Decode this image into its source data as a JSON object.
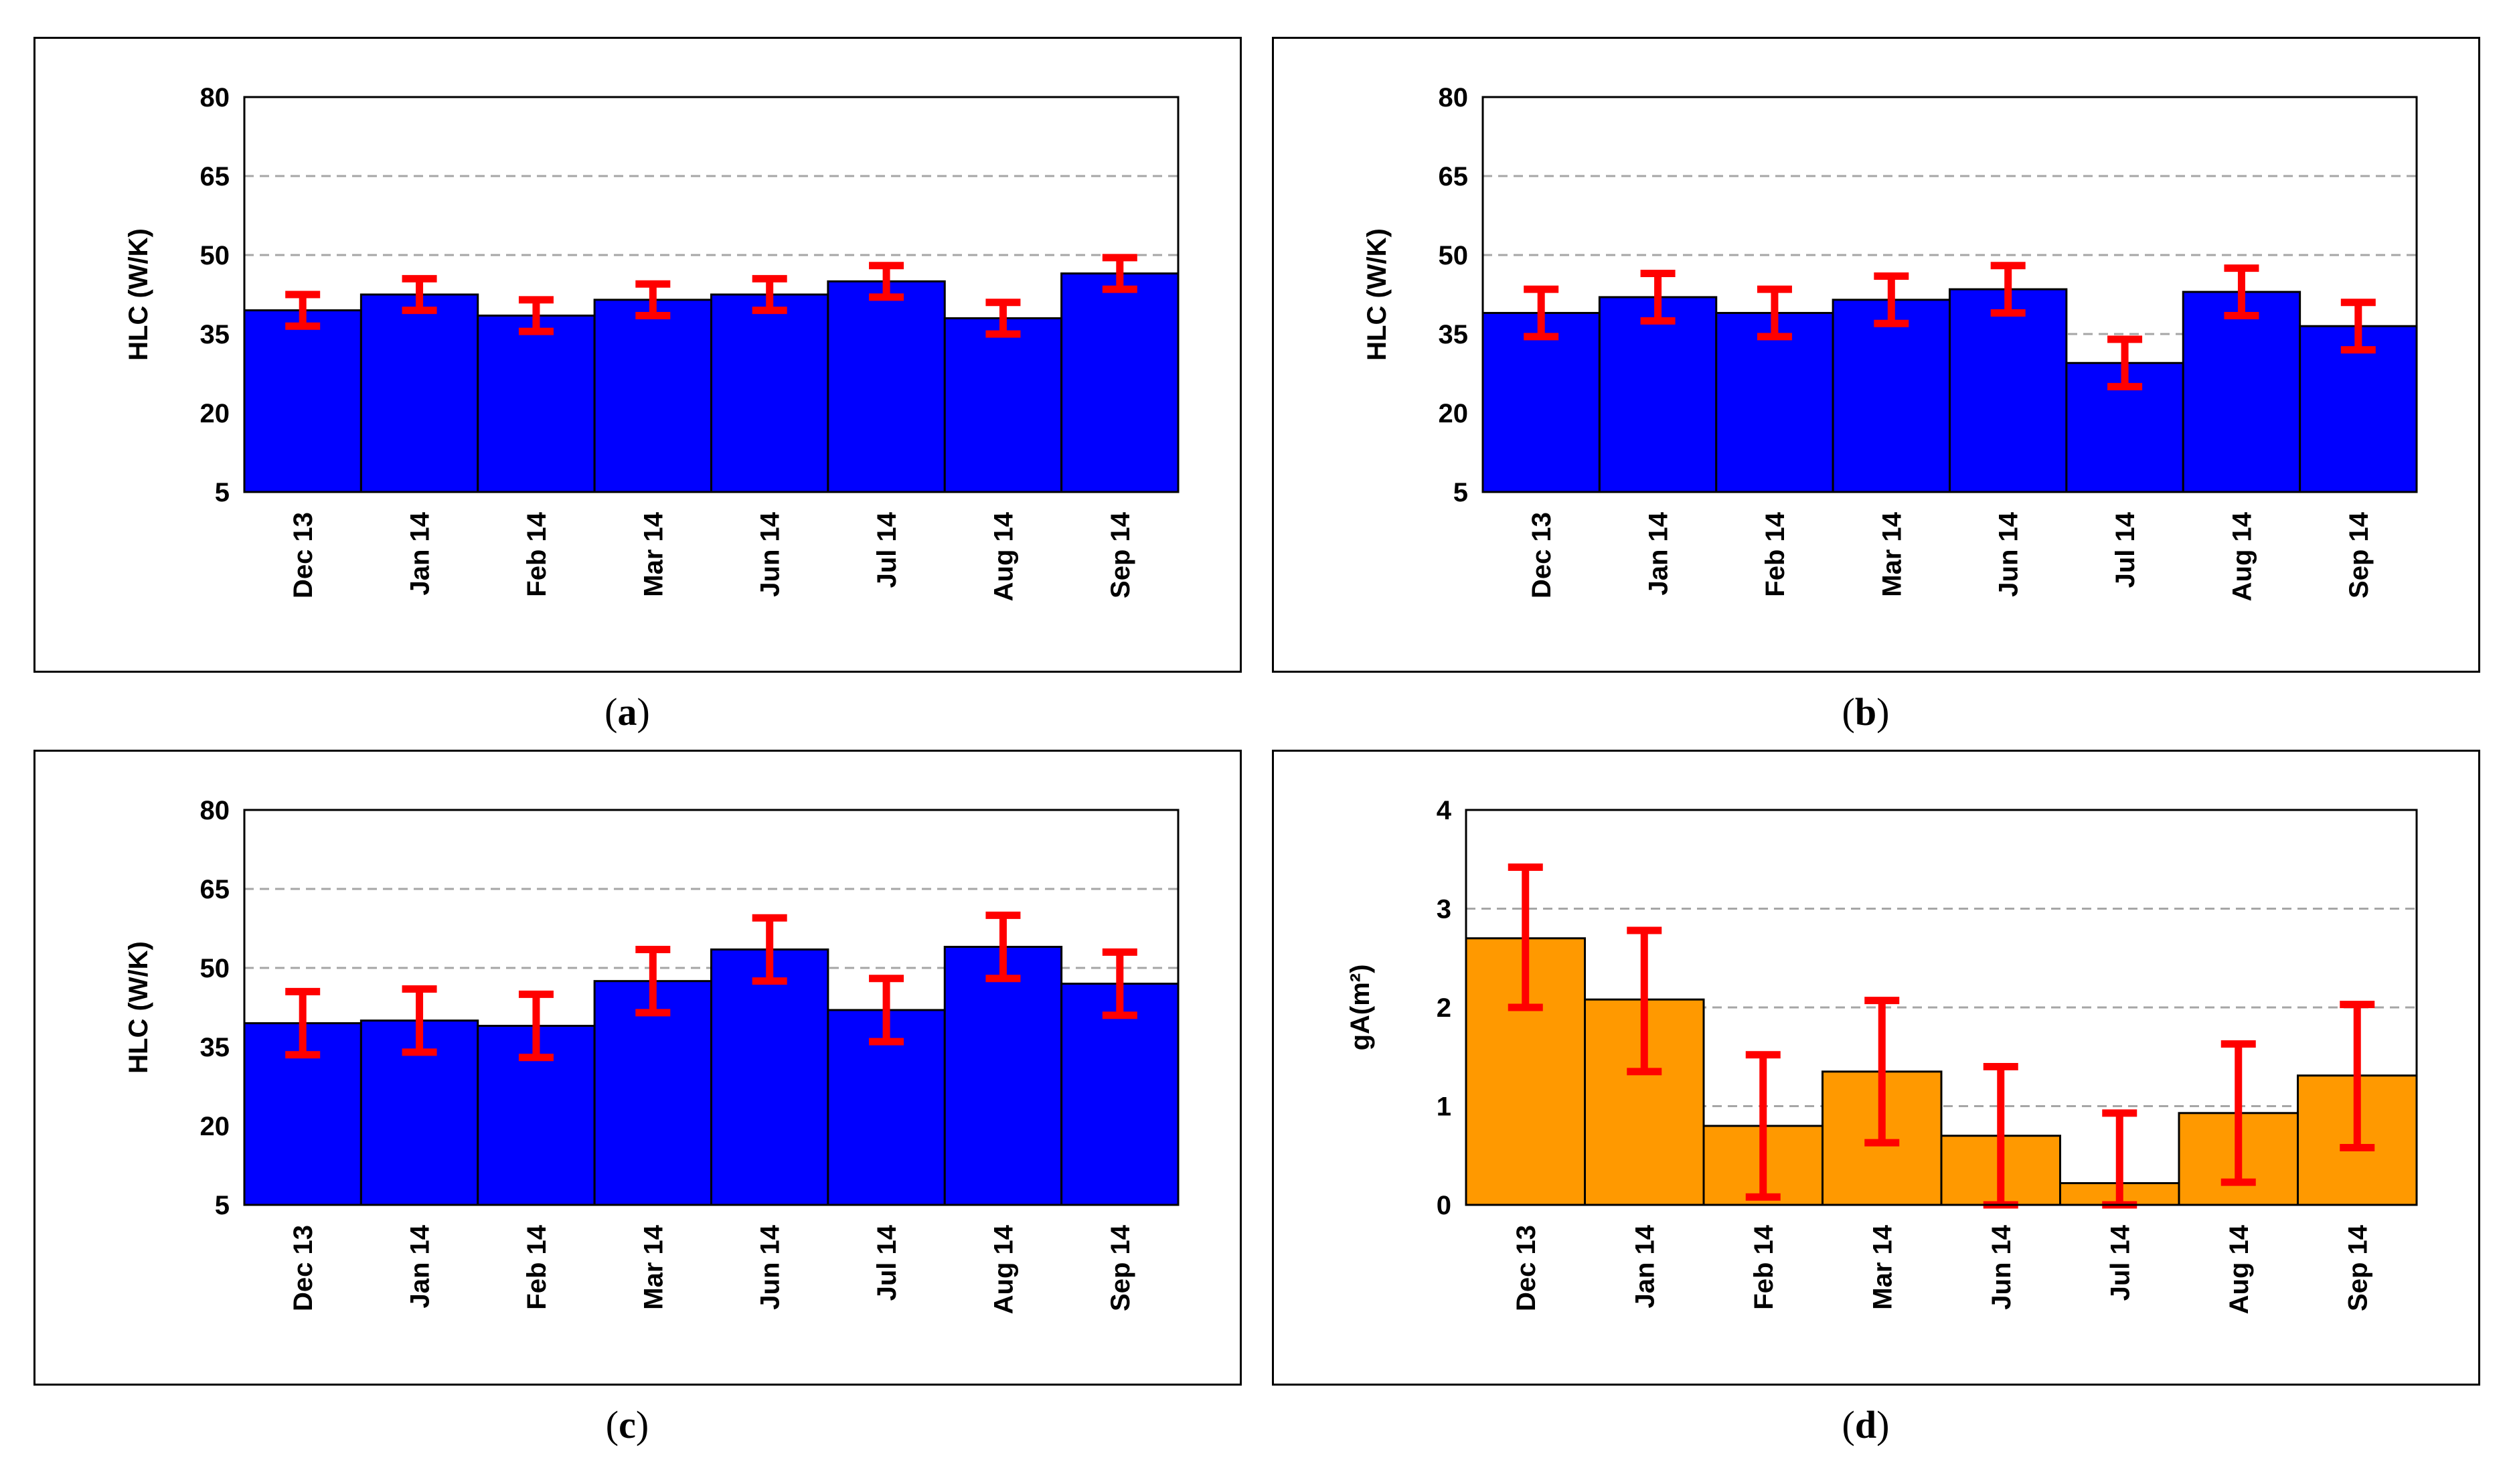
{
  "chart_data": [
    {
      "panel": "a",
      "type": "bar",
      "ylabel": "HLC (W/K)",
      "ylim": [
        5,
        80
      ],
      "yticks": [
        5,
        20,
        35,
        50,
        65,
        80
      ],
      "grid": "dashed-horizontal",
      "categories": [
        "Dec 13",
        "Jan 14",
        "Feb 14",
        "Mar 14",
        "Jun 14",
        "Jul 14",
        "Aug 14",
        "Sep 14"
      ],
      "values": [
        39.5,
        42.5,
        38.5,
        41.5,
        42.5,
        45,
        38,
        46.5
      ],
      "error_low": [
        36.5,
        39.5,
        35.5,
        38.5,
        39.5,
        42,
        35,
        43.5
      ],
      "error_high": [
        42.5,
        45.5,
        41.5,
        44.5,
        45.5,
        48,
        41,
        49.5
      ],
      "bar_color": "#0000FF",
      "error_color": "#FF0000"
    },
    {
      "panel": "b",
      "type": "bar",
      "ylabel": "HLC (W/K)",
      "ylim": [
        5,
        80
      ],
      "yticks": [
        5,
        20,
        35,
        50,
        65,
        80
      ],
      "grid": "dashed-horizontal",
      "categories": [
        "Dec 13",
        "Jan 14",
        "Feb 14",
        "Mar 14",
        "Jun 14",
        "Jul 14",
        "Aug 14",
        "Sep 14"
      ],
      "values": [
        39,
        42,
        39,
        41.5,
        43.5,
        29.5,
        43,
        36.5
      ],
      "error_low": [
        34.5,
        37.5,
        34.5,
        37,
        39,
        25,
        38.5,
        32
      ],
      "error_high": [
        43.5,
        46.5,
        43.5,
        46,
        48,
        34,
        47.5,
        41
      ],
      "bar_color": "#0000FF",
      "error_color": "#FF0000"
    },
    {
      "panel": "c",
      "type": "bar",
      "ylabel": "HLC (W/K)",
      "ylim": [
        5,
        80
      ],
      "yticks": [
        5,
        20,
        35,
        50,
        65,
        80
      ],
      "grid": "dashed-horizontal",
      "categories": [
        "Dec 13",
        "Jan 14",
        "Feb 14",
        "Mar 14",
        "Jun 14",
        "Jul 14",
        "Aug 14",
        "Sep 14"
      ],
      "values": [
        39.5,
        40,
        39,
        47.5,
        53.5,
        42,
        54,
        47
      ],
      "error_low": [
        33.5,
        34,
        33,
        41.5,
        47.5,
        36,
        48,
        41
      ],
      "error_high": [
        45.5,
        46,
        45,
        53.5,
        59.5,
        48,
        60,
        53
      ],
      "bar_color": "#0000FF",
      "error_color": "#FF0000"
    },
    {
      "panel": "d",
      "type": "bar",
      "ylabel": "gA(m²)",
      "ylim": [
        0,
        4
      ],
      "yticks": [
        0,
        1,
        2,
        3,
        4
      ],
      "grid": "dashed-horizontal",
      "categories": [
        "Dec 13",
        "Jan 14",
        "Feb 14",
        "Mar 14",
        "Jun 14",
        "Jul 14",
        "Aug 14",
        "Sep 14"
      ],
      "values": [
        2.7,
        2.08,
        0.8,
        1.35,
        0.7,
        0.22,
        0.93,
        1.31
      ],
      "error_low": [
        2.0,
        1.35,
        0.08,
        0.63,
        0.0,
        0.0,
        0.23,
        0.58
      ],
      "error_high": [
        3.42,
        2.78,
        1.52,
        2.07,
        1.4,
        0.93,
        1.63,
        2.03
      ],
      "bar_color": "#FF9900",
      "error_color": "#FF0000"
    }
  ],
  "captions": [
    "a",
    "b",
    "c",
    "d"
  ]
}
